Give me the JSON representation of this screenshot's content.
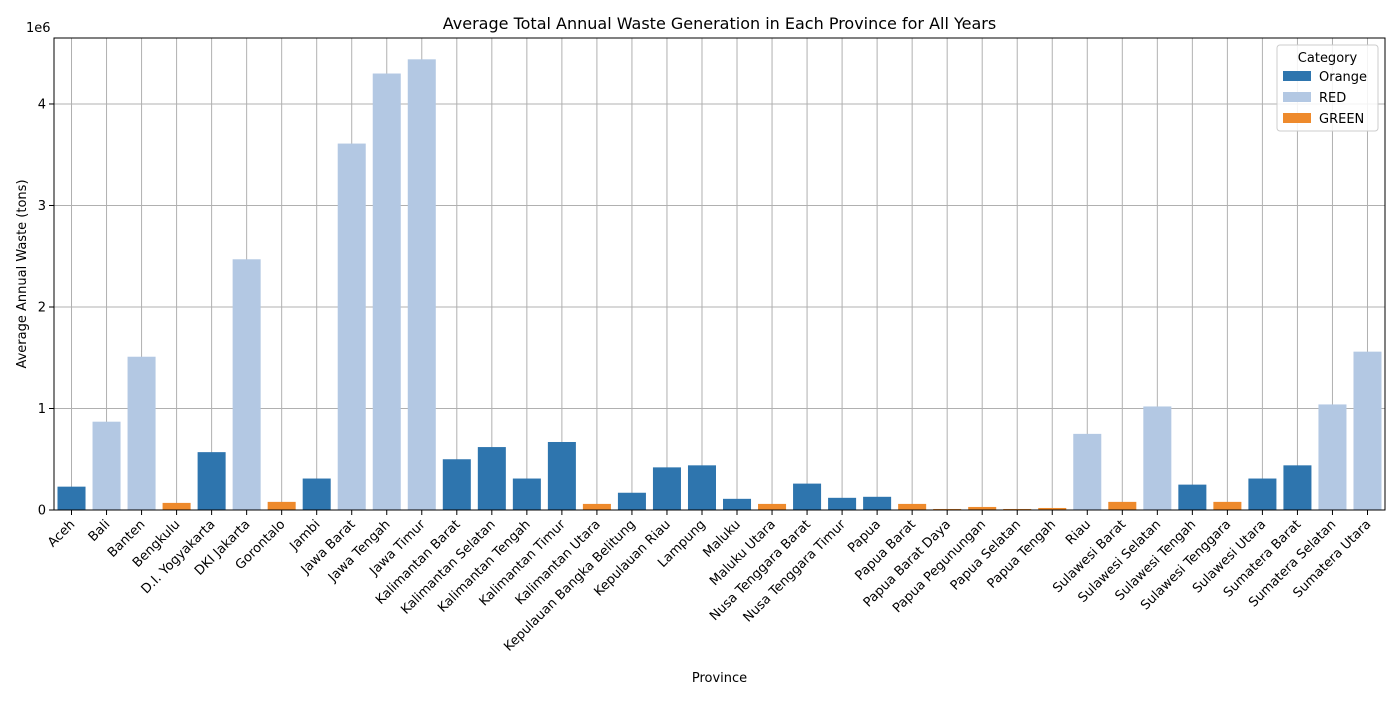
{
  "chart_data": {
    "type": "bar",
    "title": "Average Total Annual Waste Generation in Each Province for All Years",
    "xlabel": "Province",
    "ylabel": "Average Annual Waste (tons)",
    "y_multiplier_label": "1e6",
    "ylim": [
      0,
      4.65
    ],
    "yticks": [
      0,
      1,
      2,
      3,
      4
    ],
    "grid": true,
    "legend": {
      "title": "Category",
      "placement": "top-right",
      "entries": [
        {
          "name": "Orange",
          "color": "#2e75ae"
        },
        {
          "name": "RED",
          "color": "#b3c8e3"
        },
        {
          "name": "GREEN",
          "color": "#ee8a2c"
        }
      ]
    },
    "categories": [
      "Aceh",
      "Bali",
      "Banten",
      "Bengkulu",
      "D.I. Yogyakarta",
      "DKI Jakarta",
      "Gorontalo",
      "Jambi",
      "Jawa Barat",
      "Jawa Tengah",
      "Jawa Timur",
      "Kalimantan Barat",
      "Kalimantan Selatan",
      "Kalimantan Tengah",
      "Kalimantan Timur",
      "Kalimantan Utara",
      "Kepulauan Bangka Belitung",
      "Kepulauan Riau",
      "Lampung",
      "Maluku",
      "Maluku Utara",
      "Nusa Tenggara Barat",
      "Nusa Tenggara Timur",
      "Papua",
      "Papua Barat",
      "Papua Barat Daya",
      "Papua Pegunungan",
      "Papua Selatan",
      "Papua Tengah",
      "Riau",
      "Sulawesi Barat",
      "Sulawesi Selatan",
      "Sulawesi Tengah",
      "Sulawesi Tenggara",
      "Sulawesi Utara",
      "Sumatera Barat",
      "Sumatera Selatan",
      "Sumatera Utara"
    ],
    "values": [
      0.23,
      0.87,
      1.51,
      0.07,
      0.57,
      2.47,
      0.08,
      0.31,
      3.61,
      4.3,
      4.44,
      0.5,
      0.62,
      0.31,
      0.67,
      0.06,
      0.17,
      0.42,
      0.44,
      0.11,
      0.06,
      0.26,
      0.12,
      0.13,
      0.06,
      0.01,
      0.03,
      0.01,
      0.02,
      0.75,
      0.08,
      1.02,
      0.25,
      0.08,
      0.31,
      0.44,
      1.04,
      1.56
    ],
    "bar_categories": [
      "Orange",
      "RED",
      "RED",
      "GREEN",
      "Orange",
      "RED",
      "GREEN",
      "Orange",
      "RED",
      "RED",
      "RED",
      "Orange",
      "Orange",
      "Orange",
      "Orange",
      "GREEN",
      "Orange",
      "Orange",
      "Orange",
      "Orange",
      "GREEN",
      "Orange",
      "Orange",
      "Orange",
      "GREEN",
      "GREEN",
      "GREEN",
      "GREEN",
      "GREEN",
      "RED",
      "GREEN",
      "RED",
      "Orange",
      "GREEN",
      "Orange",
      "Orange",
      "RED",
      "RED"
    ]
  }
}
